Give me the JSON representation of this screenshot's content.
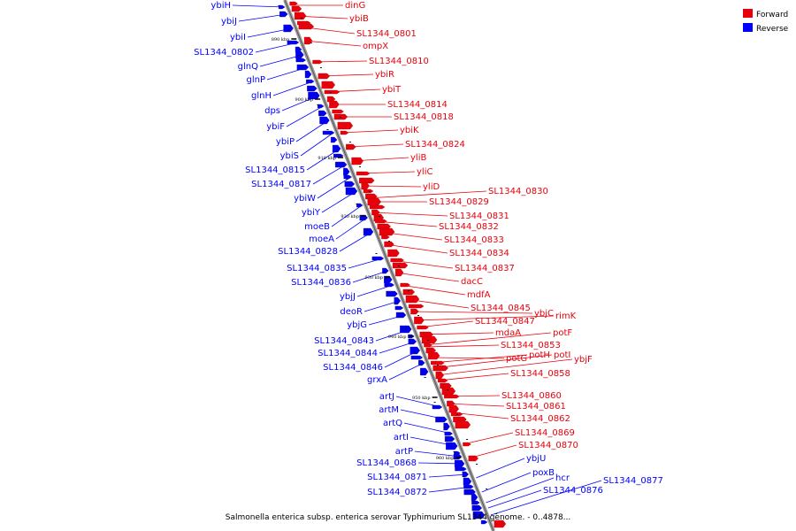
{
  "caption": "Salmonella enterica subsp. enterica serovar Typhimurium SL1344 genome. - 0..4878...",
  "legend": [
    {
      "label": "Forward",
      "color": "#e8000b"
    },
    {
      "label": "Reverse",
      "color": "#0000ff"
    }
  ],
  "ticks": [
    "890 kbp",
    "900 kbp",
    "910 kbp",
    "920 kbp",
    "930 kbp",
    "940 kbp",
    "950 kbp",
    "960 kbp"
  ],
  "reverse_genes": [
    "ybiH",
    "ybiJ",
    "ybiI",
    "SL1344_0802",
    "glnQ",
    "glnP",
    "glnH",
    "dps",
    "ybiF",
    "ybiP",
    "ybiS",
    "SL1344_0815",
    "SL1344_0817",
    "ybiW",
    "ybiY",
    "moeB",
    "moeA",
    "SL1344_0828",
    "SL1344_0835",
    "SL1344_0836",
    "ybjJ",
    "deoR",
    "ybjG",
    "SL1344_0843",
    "SL1344_0844",
    "SL1344_0846",
    "grxA",
    "artJ",
    "artM",
    "artQ",
    "artI",
    "artP",
    "SL1344_0868",
    "SL1344_0871",
    "SL1344_0872",
    "ybjU",
    "poxB",
    "hcr",
    "SL1344_0876",
    "SL1344_0877"
  ],
  "forward_genes": [
    "dinG",
    "ybiB",
    "SL1344_0801",
    "ompX",
    "SL1344_0810",
    "ybiR",
    "ybiT",
    "SL1344_0814",
    "SL1344_0818",
    "ybiK",
    "SL1344_0824",
    "yliB",
    "yliC",
    "yliD",
    "SL1344_0830",
    "SL1344_0829",
    "SL1344_0831",
    "SL1344_0832",
    "SL1344_0833",
    "SL1344_0834",
    "SL1344_0837",
    "dacC",
    "mdfA",
    "SL1344_0845",
    "ybjC",
    "rimK",
    "SL1344_0847",
    "mdaA",
    "potF",
    "SL1344_0853",
    "potG",
    "potH",
    "potI",
    "ybjF",
    "SL1344_0858",
    "SL1344_0860",
    "SL1344_0861",
    "SL1344_0862",
    "SL1344_0869",
    "SL1344_0870"
  ]
}
